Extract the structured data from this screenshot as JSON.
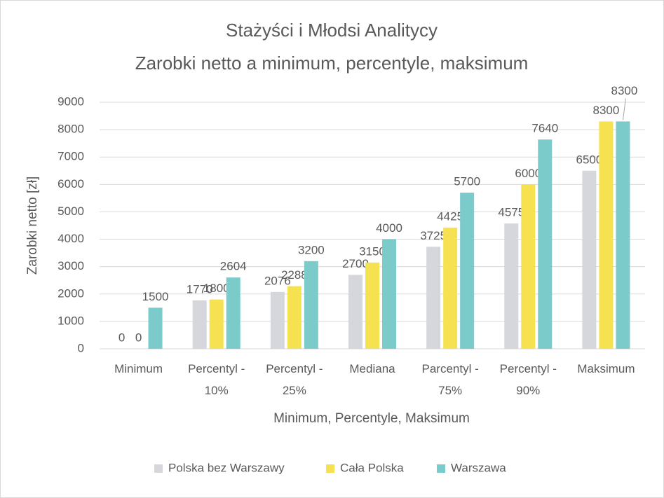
{
  "chart_data": {
    "type": "bar",
    "title": "Stażyści i Młodsi Analitycy",
    "subtitle": "Zarobki netto a minimum, percentyle, maksimum",
    "x_label": "Minimum, Percentyle, Maksimum",
    "y_label": "Zarobki netto [zł]",
    "categories": [
      "Minimum",
      "Percentyl - 10%",
      "Percentyl - 25%",
      "Mediana",
      "Parcentyl - 75%",
      "Percentyl - 90%",
      "Maksimum"
    ],
    "series": [
      {
        "name": "Polska bez Warszawy",
        "color": "#d6d7dc",
        "values": [
          0,
          1770,
          2076,
          2700,
          3725,
          4575,
          6500
        ]
      },
      {
        "name": "Cała Polska",
        "color": "#f6e250",
        "values": [
          0,
          1800,
          2288,
          3150,
          4425,
          6000,
          8300
        ]
      },
      {
        "name": "Warszawa",
        "color": "#7ccbcb",
        "values": [
          1500,
          2604,
          3200,
          4000,
          5700,
          7640,
          8300
        ]
      }
    ],
    "ylim": [
      0,
      9000
    ],
    "yticks": [
      0,
      1000,
      2000,
      3000,
      4000,
      5000,
      6000,
      7000,
      8000,
      9000
    ],
    "grid": true,
    "legend": "bottom"
  }
}
